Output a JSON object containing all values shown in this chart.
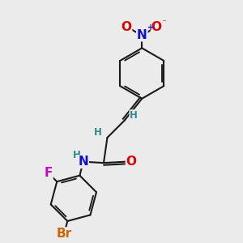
{
  "background_color": "#ebebeb",
  "bond_color": "#1a1a1a",
  "bond_width": 1.5,
  "atom_colors": {
    "N_nitro": "#1010cc",
    "O": "#dd0000",
    "N_amide": "#1010cc",
    "H": "#2e8b8b",
    "F": "#cc00cc",
    "Br": "#cc6600"
  },
  "font_size_main": 10,
  "font_size_small": 8.5
}
